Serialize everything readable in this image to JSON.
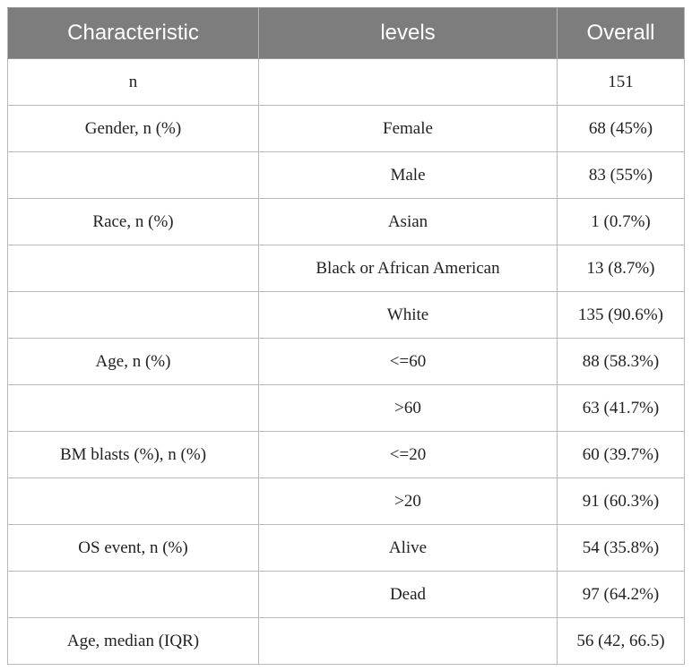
{
  "table": {
    "headers": [
      "Characteristic",
      "levels",
      "Overall"
    ],
    "rows": [
      [
        "n",
        "",
        "151"
      ],
      [
        "Gender, n (%)",
        "Female",
        "68 (45%)"
      ],
      [
        "",
        "Male",
        "83 (55%)"
      ],
      [
        "Race, n (%)",
        "Asian",
        "1 (0.7%)"
      ],
      [
        "",
        "Black or African American",
        "13 (8.7%)"
      ],
      [
        "",
        "White",
        "135 (90.6%)"
      ],
      [
        "Age, n (%)",
        "<=60",
        "88 (58.3%)"
      ],
      [
        "",
        ">60",
        "63 (41.7%)"
      ],
      [
        "BM blasts (%), n (%)",
        "<=20",
        "60 (39.7%)"
      ],
      [
        "",
        ">20",
        "91 (60.3%)"
      ],
      [
        "OS event, n (%)",
        "Alive",
        "54 (35.8%)"
      ],
      [
        "",
        "Dead",
        "97 (64.2%)"
      ],
      [
        "Age, median (IQR)",
        "",
        "56 (42, 66.5)"
      ]
    ]
  },
  "colors": {
    "header_background": "#7d7d7d",
    "header_text": "#ffffff",
    "border": "#b9b9b9"
  }
}
